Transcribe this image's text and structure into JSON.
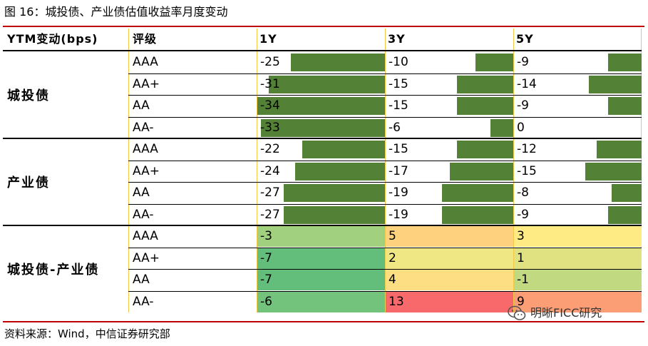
{
  "title": "图 16：城投债、产业债估值收益率月度变动",
  "source": "资料来源：Wind，中信证券研究部",
  "watermark": "明晰FICC研究",
  "headers": {
    "group": "YTM变动(bps)",
    "grade": "评级",
    "col1": "1Y",
    "col2": "3Y",
    "col3": "5Y"
  },
  "colors": {
    "bar": "#538135",
    "rule": "#c00000",
    "heat_min": "#63be7b",
    "heat_mid": "#ffeb84",
    "heat_max": "#f8696b"
  },
  "groups": [
    {
      "label": "城投债",
      "style": "bar",
      "rows": [
        {
          "grade": "AAA",
          "v1": "-25",
          "v2": "-10",
          "v3": "-9"
        },
        {
          "grade": "AA+",
          "v1": "-31",
          "v2": "-15",
          "v3": "-14"
        },
        {
          "grade": "AA",
          "v1": "-34",
          "v2": "-15",
          "v3": "-9"
        },
        {
          "grade": "AA-",
          "v1": "-33",
          "v2": "-6",
          "v3": "0"
        }
      ]
    },
    {
      "label": "产业债",
      "style": "bar",
      "rows": [
        {
          "grade": "AAA",
          "v1": "-22",
          "v2": "-15",
          "v3": "-12"
        },
        {
          "grade": "AA+",
          "v1": "-24",
          "v2": "-17",
          "v3": "-15"
        },
        {
          "grade": "AA",
          "v1": "-27",
          "v2": "-19",
          "v3": "-8"
        },
        {
          "grade": "AA-",
          "v1": "-27",
          "v2": "-19",
          "v3": "-9"
        }
      ]
    },
    {
      "label": "城投债-产业债",
      "style": "heat",
      "rows": [
        {
          "grade": "AAA",
          "v1": "-3",
          "v2": "5",
          "v3": "3"
        },
        {
          "grade": "AA+",
          "v1": "-7",
          "v2": "2",
          "v3": "1"
        },
        {
          "grade": "AA",
          "v1": "-7",
          "v2": "4",
          "v3": "-1"
        },
        {
          "grade": "AA-",
          "v1": "-6",
          "v2": "13",
          "v3": "9"
        }
      ]
    }
  ]
}
